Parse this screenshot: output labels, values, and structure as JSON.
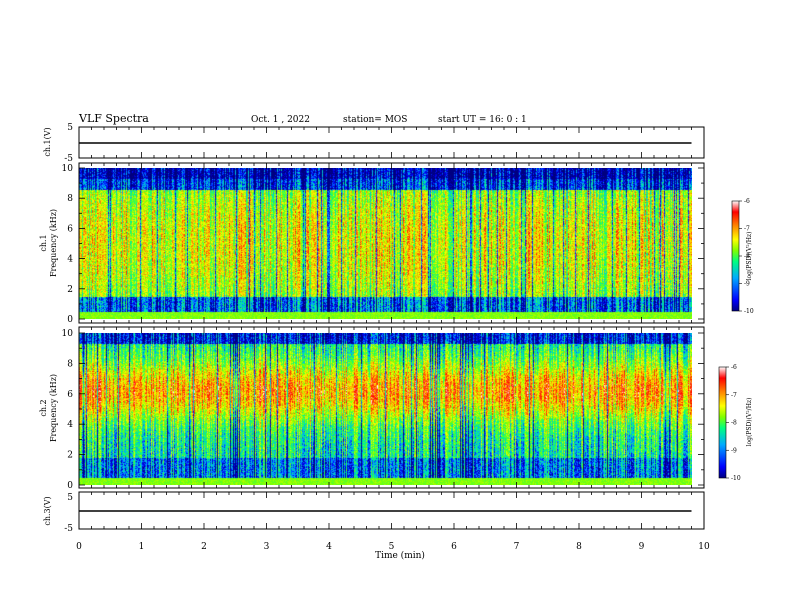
{
  "header": {
    "title": "VLF Spectra",
    "date": "Oct. 1 , 2022",
    "station": "station= MOS",
    "start": "start  UT =   16: 0  : 1"
  },
  "chart_data": [
    {
      "type": "line",
      "name": "ch1-voltage",
      "ylabel": "ch.1(V)",
      "ylim": [
        -5,
        5
      ],
      "yticks": [
        "5",
        "-5"
      ],
      "xlim": [
        0,
        10
      ],
      "x": [
        0,
        9.8
      ],
      "y": [
        0,
        0
      ]
    },
    {
      "type": "heatmap",
      "name": "ch1-spectrogram",
      "ylabel": "ch.1\nFrequency (kHz)",
      "ylabel_line1": "ch.1",
      "ylabel_line2": "Frequency (kHz)",
      "ylim": [
        0,
        10
      ],
      "yticks": [
        "0",
        "2",
        "4",
        "6",
        "8",
        "10"
      ],
      "xlim": [
        0,
        9.8
      ],
      "colorbar": {
        "label": "log(PSD)(V²/Hz)",
        "range": [
          -10,
          -6
        ],
        "ticks": [
          "-6",
          "-7",
          "-8",
          "-9",
          "-10"
        ]
      }
    },
    {
      "type": "heatmap",
      "name": "ch2-spectrogram",
      "ylabel_line1": "ch.2",
      "ylabel_line2": "Frequency (kHz)",
      "ylim": [
        0,
        10
      ],
      "yticks": [
        "0",
        "2",
        "4",
        "6",
        "8",
        "10"
      ],
      "xlim": [
        0,
        9.8
      ],
      "colorbar": {
        "label": "log(PSD)(V²/Hz)",
        "range": [
          -10,
          -6
        ],
        "ticks": [
          "-6",
          "-7",
          "-8",
          "-9",
          "-10"
        ]
      }
    },
    {
      "type": "line",
      "name": "ch3-voltage",
      "ylabel": "ch.3(V)",
      "ylim": [
        -5,
        5
      ],
      "yticks": [
        "5",
        "-5"
      ],
      "xlim": [
        0,
        10
      ],
      "x": [
        0,
        9.8
      ],
      "y": [
        0,
        0
      ]
    }
  ],
  "xaxis": {
    "label": "Time  (min)",
    "ticks": [
      "0",
      "1",
      "2",
      "3",
      "4",
      "5",
      "6",
      "7",
      "8",
      "9",
      "10"
    ]
  },
  "colors": {
    "colormap": [
      "#000080",
      "#0000ff",
      "#00aaff",
      "#00ff80",
      "#80ff00",
      "#ffff00",
      "#ff8000",
      "#ff0000",
      "#ffffff"
    ]
  }
}
